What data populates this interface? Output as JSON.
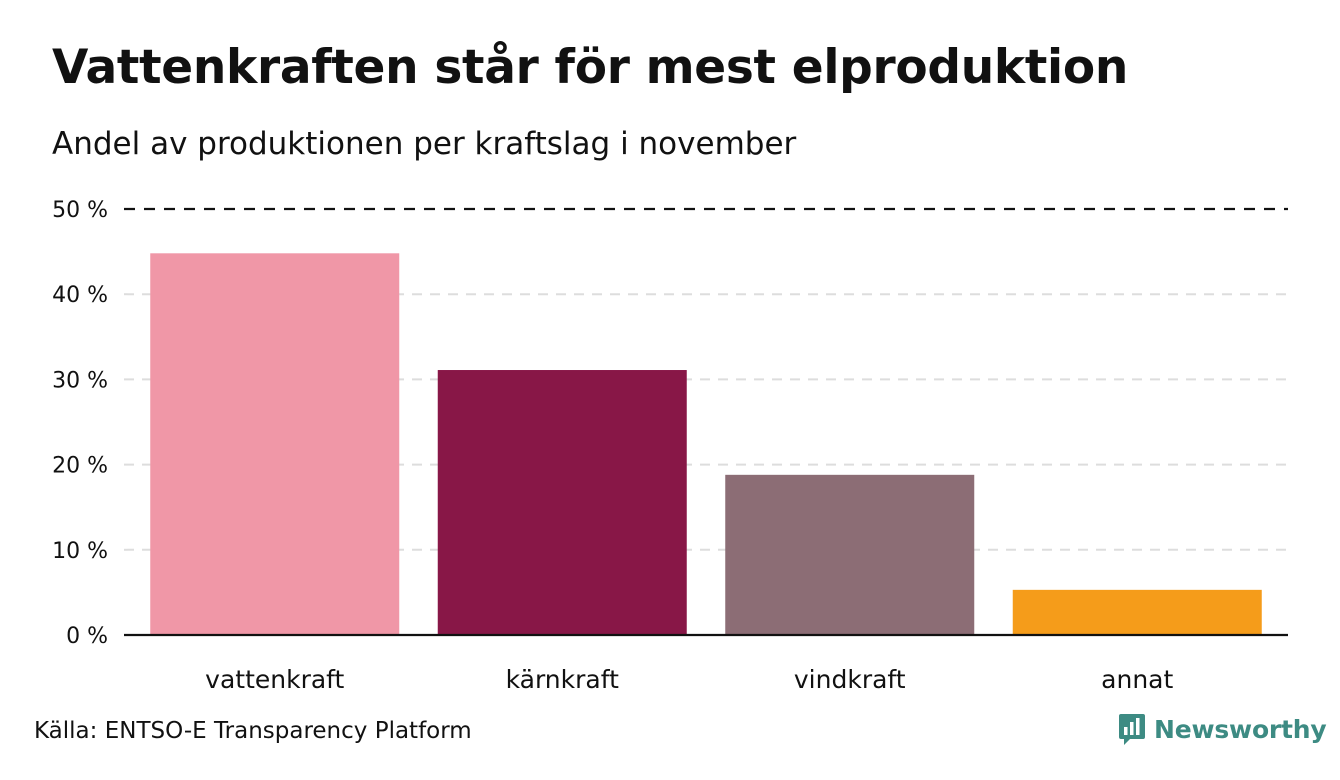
{
  "title": "Vattenkraften står för mest elproduktion",
  "subtitle": "Andel av produktionen per kraftslag i november",
  "source": "Källa: ENTSO-E Transparency Platform",
  "brand": {
    "name": "Newsworthy",
    "color": "#3d8b83"
  },
  "chart_data": {
    "type": "bar",
    "categories": [
      "vattenkraft",
      "kärnkraft",
      "vindkraft",
      "annat"
    ],
    "values": [
      44.8,
      31.1,
      18.8,
      5.3
    ],
    "colors": [
      "#f097a7",
      "#881747",
      "#8c6d75",
      "#f59c1a"
    ],
    "ylim": [
      0,
      50
    ],
    "yticks": [
      0,
      10,
      20,
      30,
      40,
      50
    ],
    "ytick_labels": [
      "0 %",
      "10 %",
      "20 %",
      "30 %",
      "40 %",
      "50 %"
    ],
    "xlabel": "",
    "ylabel": "",
    "grid": true
  }
}
